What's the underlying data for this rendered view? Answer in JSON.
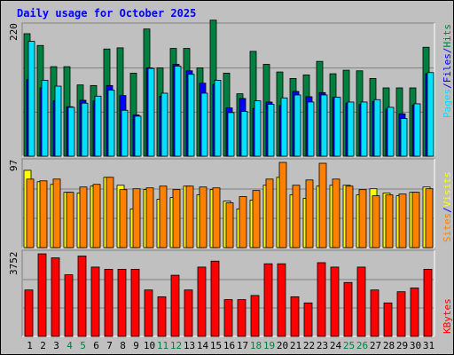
{
  "chart_data": [
    {
      "type": "bar",
      "title": "Daily usage for October 2025",
      "panel": "hits-files-pages",
      "categories": [
        "1",
        "2",
        "3",
        "4",
        "5",
        "6",
        "7",
        "8",
        "9",
        "10",
        "11",
        "12",
        "13",
        "14",
        "15",
        "16",
        "17",
        "18",
        "19",
        "20",
        "21",
        "22",
        "23",
        "24",
        "25",
        "26",
        "27",
        "28",
        "29",
        "30",
        "31"
      ],
      "ytick": "220",
      "ylim": [
        0,
        220
      ],
      "series": [
        {
          "name": "Hits",
          "color": "#008040",
          "values": [
            208,
            188,
            152,
            152,
            121,
            120,
            182,
            184,
            141,
            216,
            150,
            183,
            183,
            150,
            231,
            141,
            106,
            178,
            156,
            143,
            132,
            138,
            161,
            140,
            146,
            145,
            132,
            116,
            116,
            116,
            185
          ]
        },
        {
          "name": "Files",
          "color": "#0000ff",
          "values": [
            130,
            116,
            94,
            84,
            95,
            94,
            120,
            103,
            70,
            150,
            102,
            156,
            145,
            124,
            122,
            82,
            98,
            81,
            92,
            86,
            110,
            101,
            108,
            100,
            90,
            88,
            93,
            80,
            72,
            87,
            140
          ]
        },
        {
          "name": "Pages",
          "color": "#00e0ff",
          "values": [
            195,
            129,
            119,
            83,
            90,
            102,
            112,
            78,
            68,
            149,
            107,
            153,
            139,
            107,
            129,
            74,
            76,
            94,
            88,
            99,
            104,
            92,
            104,
            100,
            92,
            92,
            96,
            83,
            64,
            89,
            142
          ]
        }
      ]
    },
    {
      "type": "bar",
      "panel": "visits-sites",
      "categories": [
        "1",
        "2",
        "3",
        "4",
        "5",
        "6",
        "7",
        "8",
        "9",
        "10",
        "11",
        "12",
        "13",
        "14",
        "15",
        "16",
        "17",
        "18",
        "19",
        "20",
        "21",
        "22",
        "23",
        "24",
        "25",
        "26",
        "27",
        "28",
        "29",
        "30",
        "31"
      ],
      "ytick": "97",
      "ylim": [
        0,
        97
      ],
      "series": [
        {
          "name": "Sites",
          "color": "#ff8000",
          "values": [
            78,
            76,
            78,
            63,
            69,
            72,
            80,
            66,
            67,
            68,
            70,
            66,
            70,
            69,
            68,
            51,
            58,
            65,
            78,
            97,
            71,
            77,
            96,
            78,
            70,
            66,
            59,
            60,
            61,
            63,
            67
          ]
        },
        {
          "name": "Visits",
          "color": "#ffff00",
          "values": [
            88,
            75,
            72,
            63,
            62,
            70,
            80,
            71,
            44,
            66,
            55,
            57,
            70,
            60,
            66,
            53,
            44,
            54,
            71,
            80,
            60,
            56,
            70,
            71,
            71,
            60,
            67,
            62,
            59,
            63,
            69
          ]
        }
      ]
    },
    {
      "type": "bar",
      "panel": "kbytes",
      "categories": [
        "1",
        "2",
        "3",
        "4",
        "5",
        "6",
        "7",
        "8",
        "9",
        "10",
        "11",
        "12",
        "13",
        "14",
        "15",
        "16",
        "17",
        "18",
        "19",
        "20",
        "21",
        "22",
        "23",
        "24",
        "25",
        "26",
        "27",
        "28",
        "29",
        "30",
        "31"
      ],
      "ytick": "3752",
      "ylim": [
        0,
        3752
      ],
      "series": [
        {
          "name": "KBytes",
          "color": "#ff0000",
          "values": [
            2110,
            3752,
            3570,
            2800,
            3652,
            3150,
            3050,
            3050,
            3050,
            2110,
            1800,
            2780,
            2110,
            3150,
            3420,
            1670,
            1670,
            1860,
            3300,
            3300,
            1800,
            1520,
            3350,
            3150,
            2450,
            3150,
            2110,
            1520,
            2030,
            2200,
            3050
          ]
        }
      ]
    }
  ],
  "x_highlight_days": [
    "4",
    "5",
    "11",
    "12",
    "18",
    "19",
    "25",
    "26"
  ],
  "colors": {
    "background": "#c0c0c0",
    "plot_background": "#c0c0c0",
    "title": "#0000ff",
    "weekday_label": "#000000",
    "weekend_label": "#008040",
    "separator": "#0000ff"
  },
  "separator_text": "/"
}
